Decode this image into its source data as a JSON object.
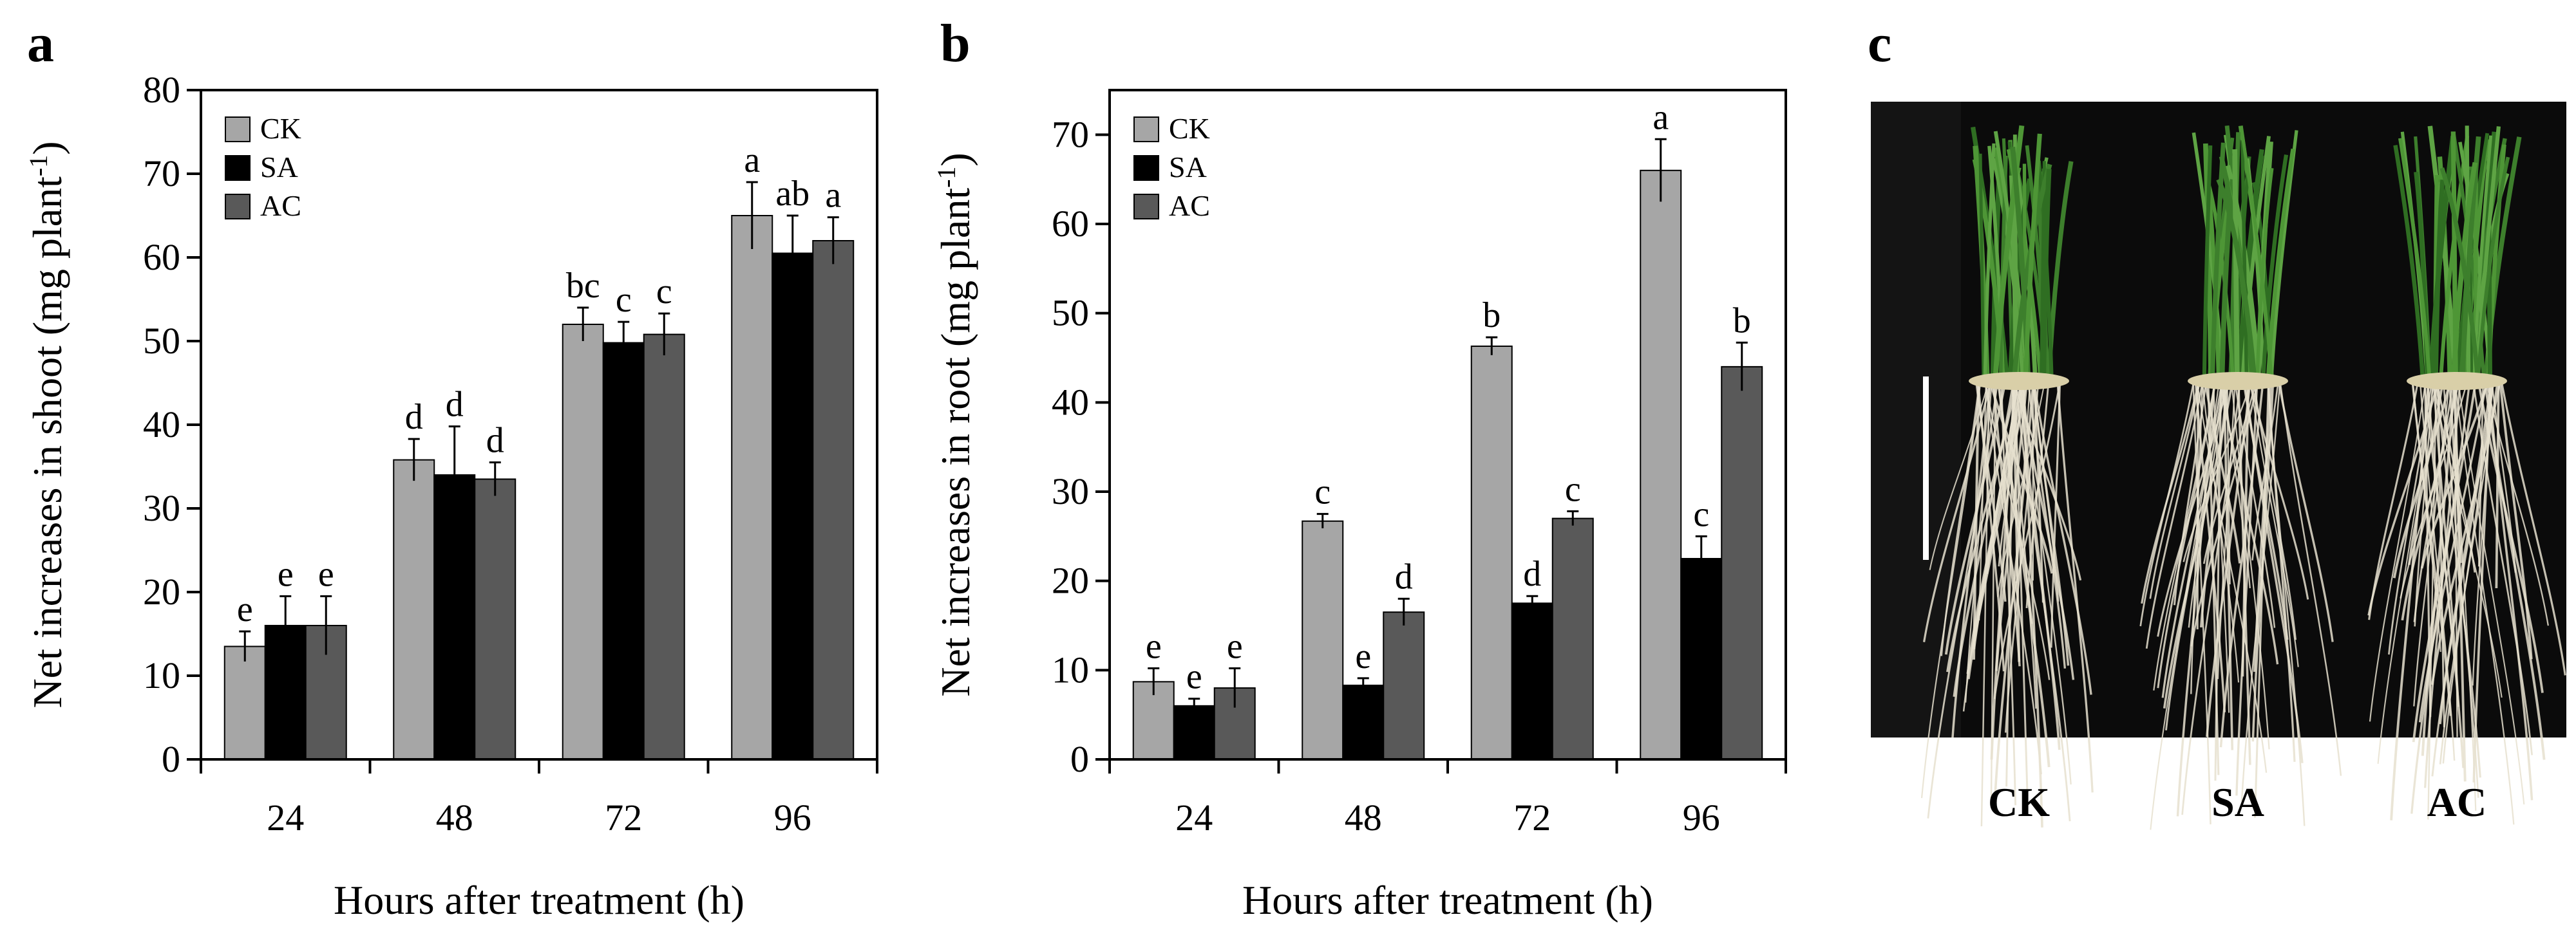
{
  "panel_labels": [
    "a",
    "b",
    "c"
  ],
  "colors": {
    "CK": "#a6a6a6",
    "SA": "#000000",
    "AC": "#595959"
  },
  "chart_data": [
    {
      "type": "bar",
      "panel": "a",
      "title": "",
      "xlabel": "Hours after treatment (h)",
      "ylabel": "Net increases in shoot (mg plant",
      "ylabel_sup": "-1",
      "ylabel_close": ")",
      "categories": [
        "24",
        "48",
        "72",
        "96"
      ],
      "ylim": [
        0,
        80
      ],
      "yticks": [
        0,
        10,
        20,
        30,
        40,
        50,
        60,
        70,
        80
      ],
      "legend_position": "top-left",
      "series": [
        {
          "name": "CK",
          "values": [
            13.5,
            35.8,
            52.0,
            65.0
          ],
          "errors": [
            1.8,
            2.5,
            2.0,
            4.0
          ],
          "labels": [
            "e",
            "d",
            "bc",
            "a"
          ]
        },
        {
          "name": "SA",
          "values": [
            16.0,
            34.0,
            49.8,
            60.5
          ],
          "errors": [
            3.5,
            5.8,
            2.5,
            4.5
          ],
          "labels": [
            "e",
            "d",
            "c",
            "ab"
          ]
        },
        {
          "name": "AC",
          "values": [
            16.0,
            33.5,
            50.8,
            62.0
          ],
          "errors": [
            3.5,
            2.0,
            2.5,
            2.8
          ],
          "labels": [
            "e",
            "d",
            "c",
            "a"
          ]
        }
      ]
    },
    {
      "type": "bar",
      "panel": "b",
      "title": "",
      "xlabel": "Hours after treatment (h)",
      "ylabel": "Net increases in root (mg plant",
      "ylabel_sup": "-1",
      "ylabel_close": ")",
      "categories": [
        "24",
        "48",
        "72",
        "96"
      ],
      "ylim": [
        0,
        75
      ],
      "yticks": [
        0,
        10,
        20,
        30,
        40,
        50,
        60,
        70
      ],
      "legend_position": "top-left",
      "series": [
        {
          "name": "CK",
          "values": [
            8.7,
            26.7,
            46.3,
            66.0
          ],
          "errors": [
            1.5,
            0.8,
            1.0,
            3.5
          ],
          "labels": [
            "e",
            "c",
            "b",
            "a"
          ]
        },
        {
          "name": "SA",
          "values": [
            6.0,
            8.3,
            17.5,
            22.5
          ],
          "errors": [
            0.8,
            0.8,
            0.8,
            2.5
          ],
          "labels": [
            "e",
            "e",
            "d",
            "c"
          ]
        },
        {
          "name": "AC",
          "values": [
            8.0,
            16.5,
            27.0,
            44.0
          ],
          "errors": [
            2.2,
            1.5,
            0.8,
            2.7
          ],
          "labels": [
            "e",
            "d",
            "c",
            "b"
          ]
        }
      ]
    }
  ],
  "photo": {
    "description_label": "c",
    "labels": [
      "CK",
      "SA",
      "AC"
    ]
  }
}
